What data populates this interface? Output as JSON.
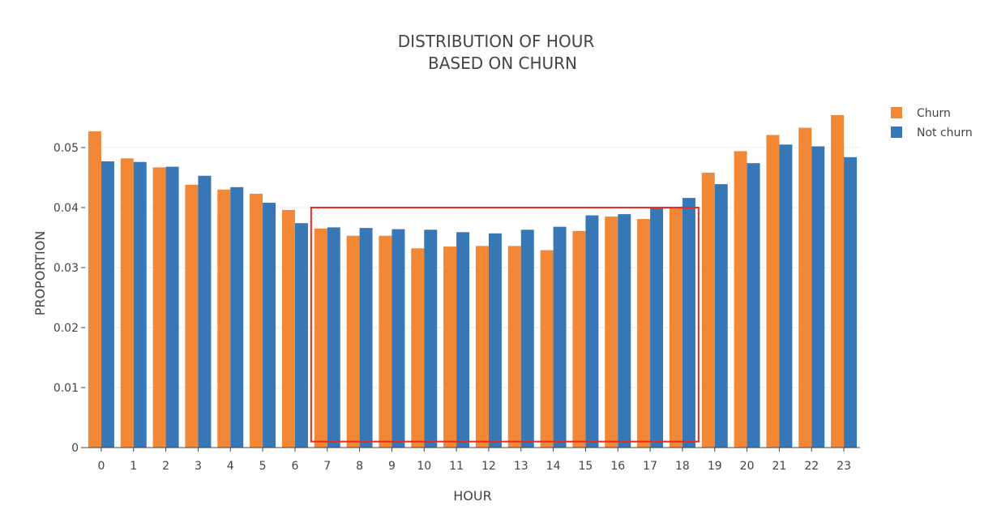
{
  "chart_data": {
    "type": "bar",
    "title_lines": [
      "DISTRIBUTION OF HOUR",
      "BASED ON CHURN"
    ],
    "xlabel": "HOUR",
    "ylabel": "PROPORTION",
    "categories": [
      "0",
      "1",
      "2",
      "3",
      "4",
      "5",
      "6",
      "7",
      "8",
      "9",
      "10",
      "11",
      "12",
      "13",
      "14",
      "15",
      "16",
      "17",
      "18",
      "19",
      "20",
      "21",
      "22",
      "23"
    ],
    "series": [
      {
        "name": "Churn",
        "color": "#F28836",
        "values": [
          0.0527,
          0.0482,
          0.0467,
          0.0438,
          0.043,
          0.0423,
          0.0396,
          0.0365,
          0.0353,
          0.0353,
          0.0332,
          0.0335,
          0.0336,
          0.0336,
          0.0329,
          0.0361,
          0.0385,
          0.0381,
          0.04,
          0.0458,
          0.0494,
          0.0521,
          0.0533,
          0.0554
        ]
      },
      {
        "name": "Not churn",
        "color": "#3877B5",
        "values": [
          0.0477,
          0.0476,
          0.0468,
          0.0453,
          0.0434,
          0.0408,
          0.0374,
          0.0367,
          0.0366,
          0.0364,
          0.0363,
          0.0359,
          0.0357,
          0.0363,
          0.0368,
          0.0387,
          0.0389,
          0.0399,
          0.0416,
          0.0439,
          0.0474,
          0.0505,
          0.0502,
          0.0484
        ]
      }
    ],
    "ylim": [
      0,
      0.0554
    ],
    "yticks": [
      0,
      0.01,
      0.02,
      0.03,
      0.04,
      0.05
    ],
    "ytick_labels": [
      "0",
      "0.01",
      "0.02",
      "0.03",
      "0.04",
      "0.05"
    ],
    "grid": true,
    "legend_position": "top-right",
    "highlight": {
      "color": "#E8291C",
      "x_from": "7",
      "x_to": "18",
      "y_from": 0.001,
      "y_to": 0.04
    }
  }
}
